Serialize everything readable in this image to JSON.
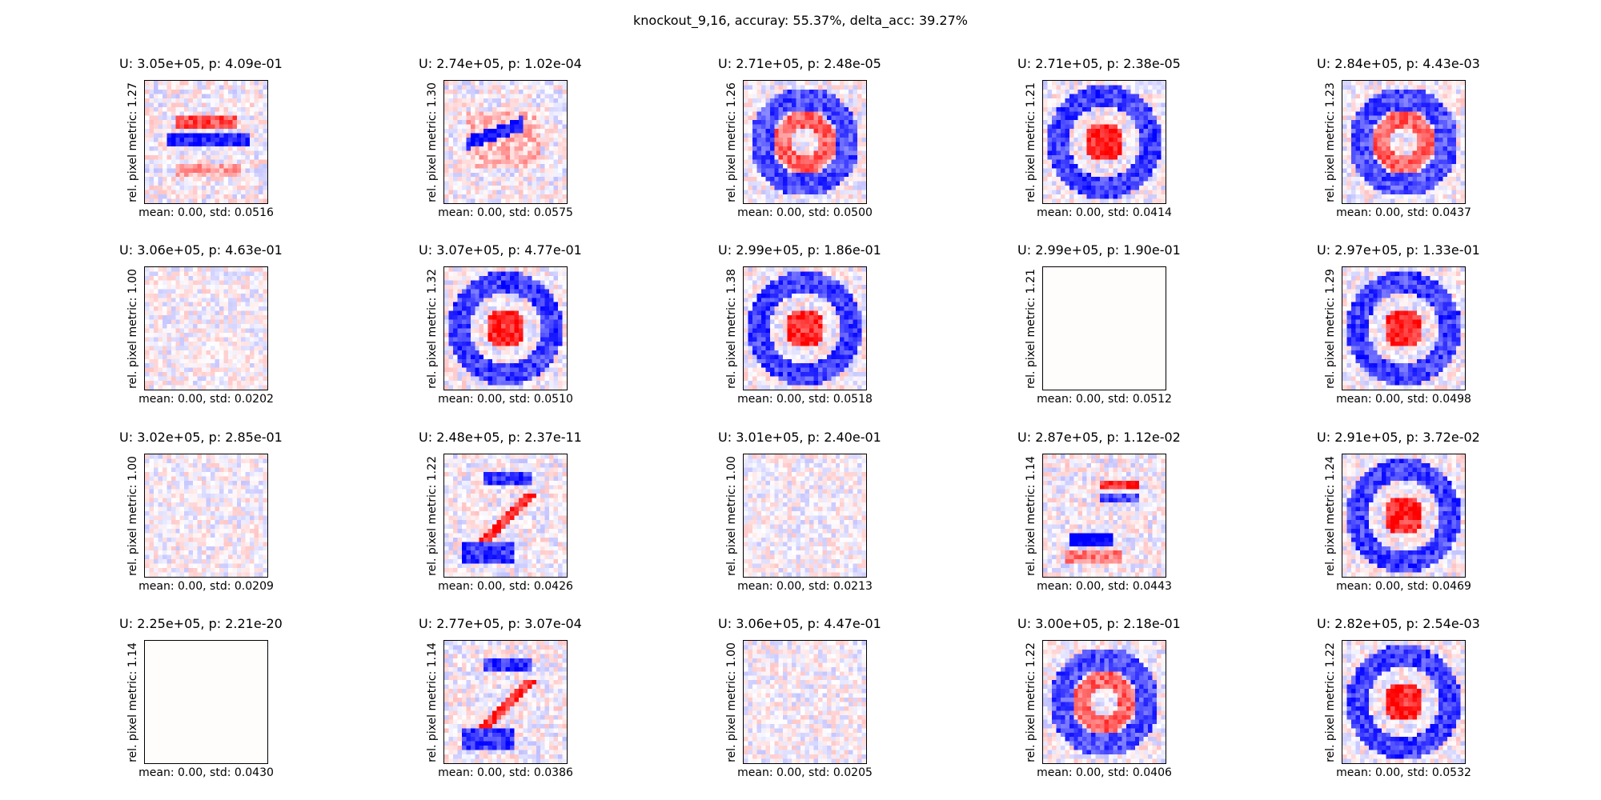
{
  "figure": {
    "suptitle": "knockout_9,16, accuray: 55.37%, delta_acc: 39.27%"
  },
  "chart_data": {
    "type": "heatmap",
    "colormap": "bwr",
    "colors": {
      "negative": "#0000ff",
      "zero": "#ffffff",
      "positive": "#ff0000"
    },
    "rows": 4,
    "cols": 5,
    "pixel_grid": [
      28,
      28
    ],
    "panels": [
      {
        "title": "U: 3.05e+05, p: 4.09e-01",
        "ylabel": "rel. pixel metric: 1.27",
        "xlabel": "mean: 0.00, std: 0.0516",
        "pattern": "horizontal-bar",
        "faint": false
      },
      {
        "title": "U: 2.74e+05, p: 1.02e-04",
        "ylabel": "rel. pixel metric: 1.30",
        "xlabel": "mean: 0.00, std: 0.0575",
        "pattern": "diagonal-stroke",
        "faint": false
      },
      {
        "title": "U: 2.71e+05, p: 2.48e-05",
        "ylabel": "rel. pixel metric: 1.26",
        "xlabel": "mean: 0.00, std: 0.0500",
        "pattern": "ring",
        "faint": false
      },
      {
        "title": "U: 2.71e+05, p: 2.38e-05",
        "ylabel": "rel. pixel metric: 1.21",
        "xlabel": "mean: 0.00, std: 0.0414",
        "pattern": "ring-center",
        "faint": false
      },
      {
        "title": "U: 2.84e+05, p: 4.43e-03",
        "ylabel": "rel. pixel metric: 1.23",
        "xlabel": "mean: 0.00, std: 0.0437",
        "pattern": "ring",
        "faint": false
      },
      {
        "title": "U: 3.06e+05, p: 4.63e-01",
        "ylabel": "rel. pixel metric: 1.00",
        "xlabel": "mean: 0.00, std: 0.0202",
        "pattern": "noise",
        "faint": true
      },
      {
        "title": "U: 3.07e+05, p: 4.77e-01",
        "ylabel": "rel. pixel metric: 1.32",
        "xlabel": "mean: 0.00, std: 0.0510",
        "pattern": "ring-center",
        "faint": false
      },
      {
        "title": "U: 2.99e+05, p: 1.86e-01",
        "ylabel": "rel. pixel metric: 1.38",
        "xlabel": "mean: 0.00, std: 0.0518",
        "pattern": "ring-center",
        "faint": false
      },
      {
        "title": "U: 2.99e+05, p: 1.90e-01",
        "ylabel": "rel. pixel metric: 1.21",
        "xlabel": "mean: 0.00, std: 0.0512",
        "pattern": "blank",
        "faint": true
      },
      {
        "title": "U: 2.97e+05, p: 1.33e-01",
        "ylabel": "rel. pixel metric: 1.29",
        "xlabel": "mean: 0.00, std: 0.0498",
        "pattern": "ring-center",
        "faint": false
      },
      {
        "title": "U: 3.02e+05, p: 2.85e-01",
        "ylabel": "rel. pixel metric: 1.00",
        "xlabel": "mean: 0.00, std: 0.0209",
        "pattern": "noise",
        "faint": true
      },
      {
        "title": "U: 2.48e+05, p: 2.37e-11",
        "ylabel": "rel. pixel metric: 1.22",
        "xlabel": "mean: 0.00, std: 0.0426",
        "pattern": "two",
        "faint": false
      },
      {
        "title": "U: 3.01e+05, p: 2.40e-01",
        "ylabel": "rel. pixel metric: 1.00",
        "xlabel": "mean: 0.00, std: 0.0213",
        "pattern": "noise",
        "faint": true
      },
      {
        "title": "U: 2.87e+05, p: 1.12e-02",
        "ylabel": "rel. pixel metric: 1.14",
        "xlabel": "mean: 0.00, std: 0.0443",
        "pattern": "bars-stack",
        "faint": false
      },
      {
        "title": "U: 2.91e+05, p: 3.72e-02",
        "ylabel": "rel. pixel metric: 1.24",
        "xlabel": "mean: 0.00, std: 0.0469",
        "pattern": "ring-center",
        "faint": false
      },
      {
        "title": "U: 2.25e+05, p: 2.21e-20",
        "ylabel": "rel. pixel metric: 1.14",
        "xlabel": "mean: 0.00, std: 0.0430",
        "pattern": "blank",
        "faint": true
      },
      {
        "title": "U: 2.77e+05, p: 3.07e-04",
        "ylabel": "rel. pixel metric: 1.14",
        "xlabel": "mean: 0.00, std: 0.0386",
        "pattern": "two",
        "faint": false
      },
      {
        "title": "U: 3.06e+05, p: 4.47e-01",
        "ylabel": "rel. pixel metric: 1.00",
        "xlabel": "mean: 0.00, std: 0.0205",
        "pattern": "noise",
        "faint": true
      },
      {
        "title": "U: 3.00e+05, p: 2.18e-01",
        "ylabel": "rel. pixel metric: 1.22",
        "xlabel": "mean: 0.00, std: 0.0406",
        "pattern": "ring",
        "faint": false
      },
      {
        "title": "U: 2.82e+05, p: 2.54e-03",
        "ylabel": "rel. pixel metric: 1.22",
        "xlabel": "mean: 0.00, std: 0.0532",
        "pattern": "ring-center",
        "faint": false
      }
    ]
  }
}
